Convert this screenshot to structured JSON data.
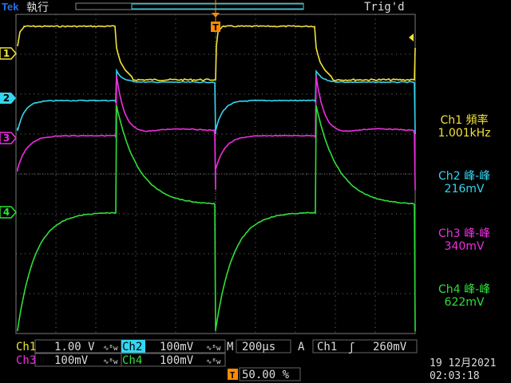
{
  "header": {
    "brand": "Tek",
    "run_state": "執行",
    "trigger_status": "Trig'd"
  },
  "colors": {
    "ch1": "#f2e33a",
    "ch2": "#33d6f0",
    "ch3": "#ee2fe0",
    "ch4": "#2fe03a",
    "trigger": "#ff8a00",
    "grid": "#7a7a7a",
    "panel_bg": "#000000",
    "text": "#dddddd"
  },
  "channel_markers": {
    "ch1": "1",
    "ch2": "2",
    "ch3": "3",
    "ch4": "4"
  },
  "measurements": [
    {
      "title": "Ch1 頻率",
      "value": "1.001kHz",
      "color": "#f2e33a"
    },
    {
      "title": "Ch2 峰-峰",
      "value": "216mV",
      "color": "#33d6f0"
    },
    {
      "title": "Ch3 峰-峰",
      "value": "340mV",
      "color": "#ee2fe0"
    },
    {
      "title": "Ch4 峰-峰",
      "value": "622mV",
      "color": "#2fe03a"
    }
  ],
  "bottom": {
    "ch1_label": "Ch1",
    "ch1_scale": "1.00 V",
    "ch2_label": "Ch2",
    "ch2_scale": "100mV",
    "ch3_label": "Ch3",
    "ch3_scale": "100mV",
    "ch4_label": "Ch4",
    "ch4_scale": "100mV",
    "bw_symbol": "∿ᴮw",
    "timebase_label": "M",
    "timebase": "200μs",
    "trigger_mode": "A",
    "trigger_source": "Ch1",
    "trigger_slope": "ʃ",
    "trigger_level": "260mV",
    "trigger_position": "50.00 %",
    "trigger_marker": "T",
    "date": "19 12月2021",
    "time": "02:03:18"
  }
}
